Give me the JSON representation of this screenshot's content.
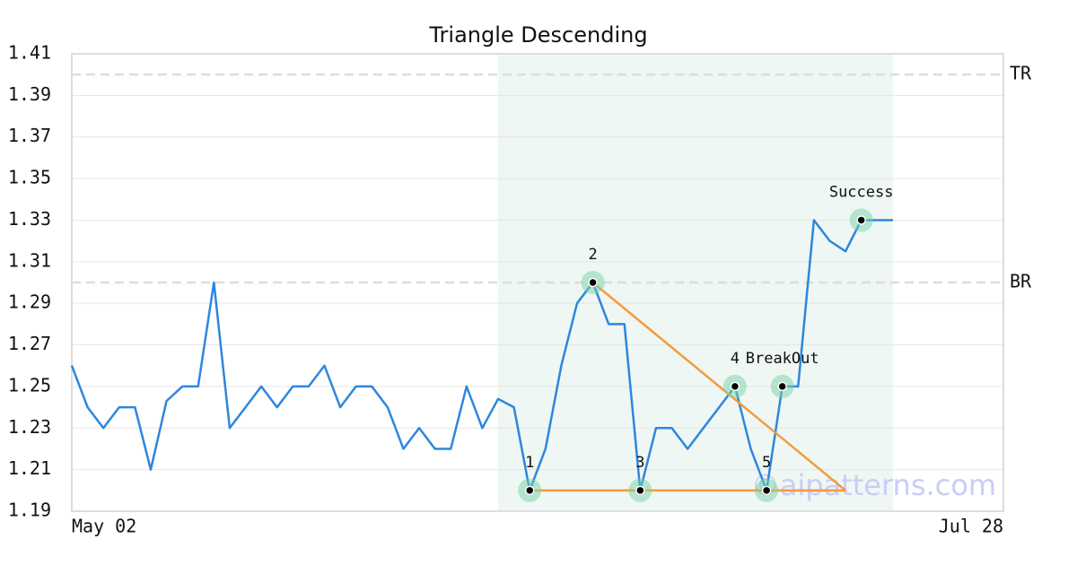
{
  "chart_data": {
    "type": "line",
    "title": "Triangle Descending",
    "x": [
      0,
      1,
      2,
      3,
      4,
      5,
      6,
      7,
      8,
      9,
      10,
      11,
      12,
      13,
      14,
      15,
      16,
      17,
      18,
      19,
      20,
      21,
      22,
      23,
      24,
      25,
      26,
      27,
      28,
      29,
      30,
      31,
      32,
      33,
      34,
      35,
      36,
      37,
      38,
      39,
      40,
      41,
      42,
      43,
      44,
      45,
      46,
      47,
      48,
      49,
      50,
      51,
      52
    ],
    "values": [
      1.26,
      1.24,
      1.23,
      1.24,
      1.24,
      1.21,
      1.243,
      1.25,
      1.25,
      1.3,
      1.23,
      1.24,
      1.25,
      1.24,
      1.25,
      1.25,
      1.26,
      1.24,
      1.25,
      1.25,
      1.24,
      1.22,
      1.23,
      1.22,
      1.22,
      1.25,
      1.23,
      1.244,
      1.24,
      1.2,
      1.22,
      1.26,
      1.29,
      1.3,
      1.28,
      1.28,
      1.2,
      1.23,
      1.23,
      1.22,
      1.23,
      1.24,
      1.25,
      1.22,
      1.2,
      1.25,
      1.25,
      1.33,
      1.32,
      1.315,
      1.33,
      1.33,
      1.33
    ],
    "color": "#2e86de",
    "xlim": [
      0,
      59
    ],
    "xticks": [
      {
        "value": 0,
        "label": "May 02"
      },
      {
        "value": 59,
        "label": "Jul 28"
      }
    ],
    "ylim": [
      1.19,
      1.41
    ],
    "yticks": [
      1.19,
      1.21,
      1.23,
      1.25,
      1.27,
      1.29,
      1.31,
      1.33,
      1.35,
      1.37,
      1.39,
      1.41
    ],
    "grid": true,
    "shade": [
      27,
      52
    ],
    "lines": [
      {
        "x": [
          29,
          49
        ],
        "values": [
          1.2,
          1.2
        ],
        "color": "#f59a3c"
      },
      {
        "x": [
          33,
          49
        ],
        "values": [
          1.3,
          1.2
        ],
        "color": "#f59a3c"
      }
    ],
    "levels": [
      {
        "label": "TR",
        "value": 1.4
      },
      {
        "label": "BR",
        "value": 1.3
      }
    ],
    "markers": [
      {
        "label": "1",
        "x": 29,
        "value": 1.2
      },
      {
        "label": "2",
        "x": 33,
        "value": 1.3
      },
      {
        "label": "3",
        "x": 36,
        "value": 1.2
      },
      {
        "label": "4",
        "x": 42,
        "value": 1.25
      },
      {
        "label": "5",
        "x": 44,
        "value": 1.2
      },
      {
        "label": "BreakOut",
        "x": 45,
        "value": 1.25
      },
      {
        "label": "Success",
        "x": 50,
        "value": 1.33
      }
    ],
    "watermark": "©aipatterns.com"
  }
}
